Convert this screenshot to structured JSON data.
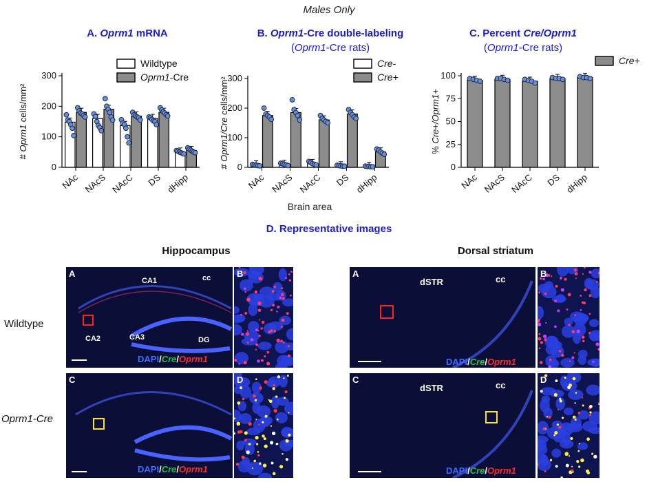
{
  "figure": {
    "super_title": "Males Only",
    "panels": [
      {
        "letter": "A. ",
        "title_em": "Oprm1",
        "title_rest": " mRNA",
        "subtitle": ""
      },
      {
        "letter": "B. ",
        "title_em": "Oprm1",
        "title_rest": "-Cre double-labeling",
        "subtitle_em": "Oprm1",
        "subtitle_rest": "-Cre rats)"
      },
      {
        "letter": "C. ",
        "title_em": "",
        "title_rest": "Percent ",
        "title_em2": "Cre/Oprm1",
        "subtitle_em": "Oprm1",
        "subtitle_rest": "-Cre rats)"
      }
    ],
    "shared_xlabel": "Brain area",
    "section_d_title": "D. Representative images",
    "hippocampus_title": "Hippocampus",
    "striatum_title": "Dorsal striatum",
    "row_wildtype": "Wildtype",
    "row_cre": "Oprm1-Cre",
    "stain_dapi": "DAPI",
    "stain_slash": "/",
    "stain_cre": "Cre",
    "stain_oprm1": "Oprm1",
    "micro_labels": {
      "hippo": {
        "A": "A",
        "B": "B",
        "C": "C",
        "D": "D",
        "CA1": "CA1",
        "CA2": "CA2",
        "CA3": "CA3",
        "DG": "DG",
        "cc": "cc"
      },
      "stri": {
        "A": "A",
        "B": "B",
        "C": "C",
        "D": "D",
        "dSTR": "dSTR",
        "cc": "cc"
      }
    }
  },
  "chart_data": [
    {
      "type": "bar",
      "ylabel_prefix": "# ",
      "ylabel_em": "Oprm1",
      "ylabel_rest": " cells/mm²",
      "categories": [
        "NAc",
        "NAcS",
        "NAcC",
        "DS",
        "dHipp"
      ],
      "ylim": [
        0,
        300
      ],
      "yticks": [
        0,
        100,
        200,
        300
      ],
      "legend": [
        "Wildtype",
        "-Cre"
      ],
      "legend_em": [
        "",
        "Oprm1"
      ],
      "series": [
        {
          "name": "Wildtype",
          "color": "#ffffff",
          "values": [
            148,
            160,
            137,
            160,
            50
          ],
          "points": [
            [
              172,
              155,
              150,
              140,
              128,
              104
            ],
            [
              175,
              166,
              150,
              137,
              130,
              120
            ],
            [
              156,
              145,
              140,
              128,
              100,
              80
            ],
            [
              165,
              162,
              157,
              152,
              150,
              140
            ],
            [
              55,
              53,
              50,
              48,
              46,
              44
            ]
          ]
        },
        {
          "name": "Oprm1-Cre",
          "color": "#8c8c8c",
          "values": [
            180,
            190,
            168,
            180,
            55
          ],
          "points": [
            [
              195,
              185,
              178,
              175,
              170,
              165
            ],
            [
              225,
              200,
              190,
              180,
              165,
              155
            ],
            [
              180,
              172,
              168,
              165,
              162,
              155
            ],
            [
              195,
              188,
              182,
              178,
              172,
              168
            ],
            [
              64,
              60,
              56,
              53,
              50,
              48
            ]
          ]
        }
      ]
    },
    {
      "type": "bar",
      "ylabel_prefix": "# ",
      "ylabel_em": "Oprm1/Cre",
      "ylabel_rest": " cells/mm²",
      "categories": [
        "NAc",
        "NAcS",
        "NAcC",
        "DS",
        "dHipp"
      ],
      "ylim": [
        0,
        300
      ],
      "yticks": [
        0,
        100,
        200,
        300
      ],
      "legend": [
        "Cre-",
        "Cre+"
      ],
      "series": [
        {
          "name": "Cre-",
          "color": "#ffffff",
          "values": [
            8,
            10,
            13,
            5,
            3
          ],
          "points": [
            [
              10,
              8,
              7,
              6,
              5
            ],
            [
              14,
              12,
              10,
              8,
              6
            ],
            [
              20,
              16,
              12,
              10,
              8
            ],
            [
              7,
              6,
              5,
              4,
              4
            ],
            [
              4,
              3,
              3,
              2,
              2
            ]
          ]
        },
        {
          "name": "Cre+",
          "color": "#8c8c8c",
          "values": [
            175,
            185,
            160,
            180,
            52
          ],
          "points": [
            [
              200,
              180,
              175,
              170,
              162
            ],
            [
              228,
              195,
              185,
              175,
              160
            ],
            [
              175,
              165,
              160,
              155,
              150
            ],
            [
              195,
              185,
              178,
              170,
              165
            ],
            [
              62,
              58,
              52,
              48,
              44
            ]
          ]
        }
      ]
    },
    {
      "type": "bar",
      "ylabel_prefix": "% ",
      "ylabel_em": "Cre+/Oprm1+",
      "ylabel_rest": "",
      "categories": [
        "NAc",
        "NAcS",
        "NAcC",
        "DS",
        "dHipp"
      ],
      "ylim": [
        0,
        100
      ],
      "yticks": [
        0,
        25,
        50,
        75,
        100
      ],
      "legend": [
        "Cre+"
      ],
      "series": [
        {
          "name": "Cre+",
          "color": "#8c8c8c",
          "values": [
            95,
            96,
            94,
            97,
            98
          ],
          "points": [
            [
              97,
              96,
              95,
              94
            ],
            [
              97,
              97,
              96,
              95
            ],
            [
              96,
              95,
              94,
              92
            ],
            [
              98,
              97,
              97,
              96
            ],
            [
              99,
              98,
              98,
              97
            ]
          ]
        }
      ]
    }
  ]
}
